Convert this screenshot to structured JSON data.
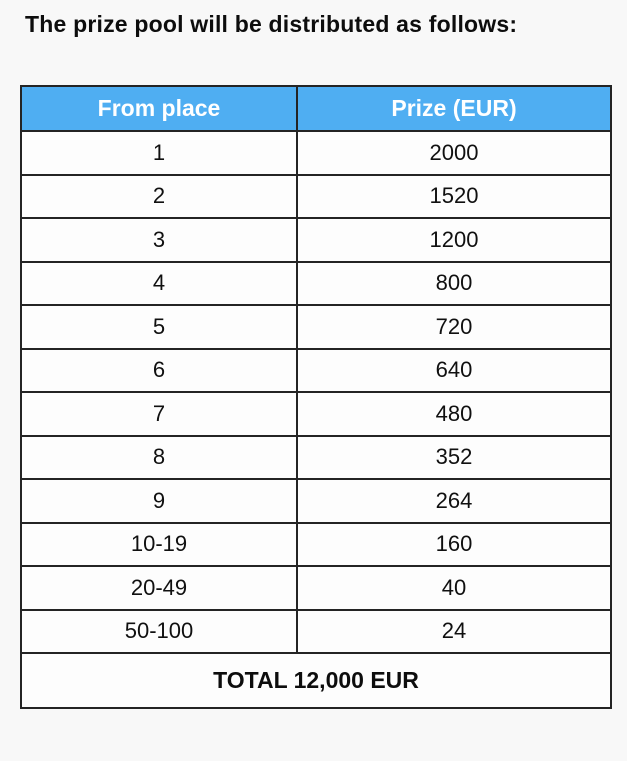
{
  "page": {
    "title": "The prize pool will be distributed as follows:"
  },
  "table": {
    "headers": {
      "place": "From place",
      "prize": "Prize (EUR)"
    },
    "rows": [
      {
        "place": "1",
        "prize": "2000"
      },
      {
        "place": "2",
        "prize": "1520"
      },
      {
        "place": "3",
        "prize": "1200"
      },
      {
        "place": "4",
        "prize": "800"
      },
      {
        "place": "5",
        "prize": "720"
      },
      {
        "place": "6",
        "prize": "640"
      },
      {
        "place": "7",
        "prize": "480"
      },
      {
        "place": "8",
        "prize": "352"
      },
      {
        "place": "9",
        "prize": "264"
      },
      {
        "place": "10-19",
        "prize": "160"
      },
      {
        "place": "20-49",
        "prize": "40"
      },
      {
        "place": "50-100",
        "prize": "24"
      }
    ],
    "footer_total": "TOTAL 12,000 EUR"
  },
  "colors": {
    "header_background": "#4FAEF2",
    "header_text": "#ffffff",
    "border": "#242424",
    "page_background": "#f8f8f8"
  }
}
